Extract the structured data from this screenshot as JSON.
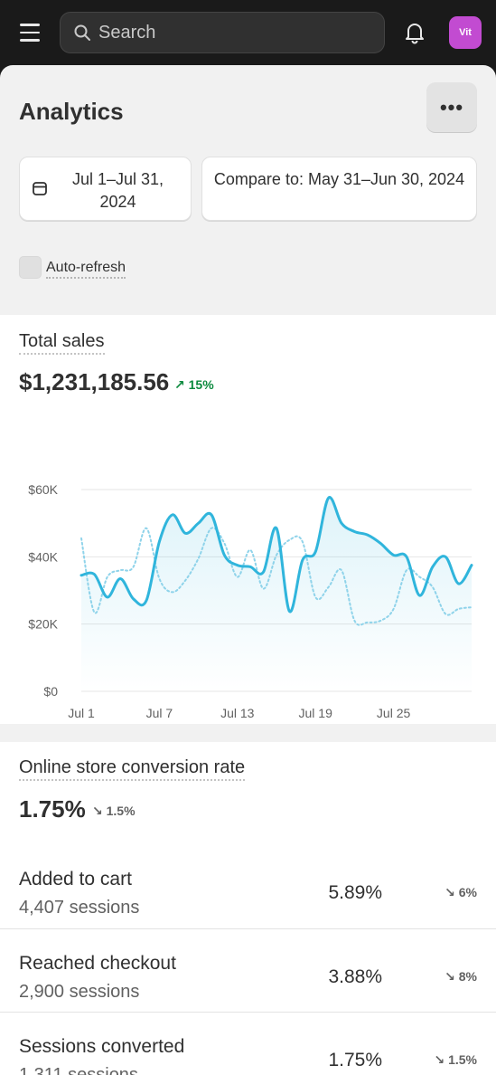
{
  "topbar": {
    "search_placeholder": "Search",
    "avatar_initials": "Vit",
    "avatar_color": "#c24bd1"
  },
  "header": {
    "title": "Analytics",
    "more_label": "•••"
  },
  "filters": {
    "date_range": "Jul 1–Jul 31, 2024",
    "compare_to": "Compare to: May 31–Jun 30, 2024",
    "auto_refresh_label": "Auto-refresh",
    "auto_refresh_checked": false
  },
  "total_sales": {
    "title": "Total sales",
    "value": "$1,231,185.56",
    "delta": "15%",
    "delta_direction": "up",
    "accent_color": "#30b5dc",
    "positive_color": "#0c8a3e"
  },
  "chart_data": {
    "type": "line",
    "y_ticks": [
      "$60K",
      "$40K",
      "$20K",
      "$0"
    ],
    "y_tick_values": [
      60000,
      40000,
      20000,
      0
    ],
    "ylim": [
      0,
      60000
    ],
    "x_ticks": [
      "Jul 1",
      "Jul 7",
      "Jul 13",
      "Jul 19",
      "Jul 25"
    ],
    "grid": true,
    "legend_position": "bottom",
    "series": [
      {
        "name": "Jul 1–Jul 31, 2024",
        "style": "solid",
        "color": "#30b5dc",
        "values": [
          34500,
          34800,
          28000,
          33500,
          27500,
          27000,
          44500,
          52500,
          47000,
          50000,
          52500,
          40500,
          37500,
          37000,
          35500,
          48500,
          23800,
          39000,
          41500,
          57500,
          50000,
          47500,
          46500,
          44000,
          40500,
          40000,
          28500,
          37000,
          40000,
          32000,
          37500
        ]
      },
      {
        "name": "May 31–Jun 30, 2024",
        "style": "dotted",
        "color": "#8fd3ea",
        "values": [
          45500,
          23500,
          34000,
          36000,
          37000,
          48500,
          33500,
          29500,
          33000,
          39500,
          48500,
          44000,
          34000,
          42000,
          30500,
          40500,
          45000,
          44500,
          28000,
          31000,
          36000,
          21000,
          20500,
          21000,
          24500,
          36000,
          34000,
          31000,
          23000,
          24500,
          25000
        ]
      }
    ]
  },
  "conversion": {
    "title": "Online store conversion rate",
    "value": "1.75%",
    "delta": "1.5%",
    "delta_direction": "down",
    "rows": [
      {
        "label": "Added to cart",
        "sessions": "4,407 sessions",
        "value": "5.89%",
        "delta": "6%"
      },
      {
        "label": "Reached checkout",
        "sessions": "2,900 sessions",
        "value": "3.88%",
        "delta": "8%"
      },
      {
        "label": "Sessions converted",
        "sessions": "1,311 sessions",
        "value": "1.75%",
        "delta": "1.5%"
      }
    ]
  }
}
